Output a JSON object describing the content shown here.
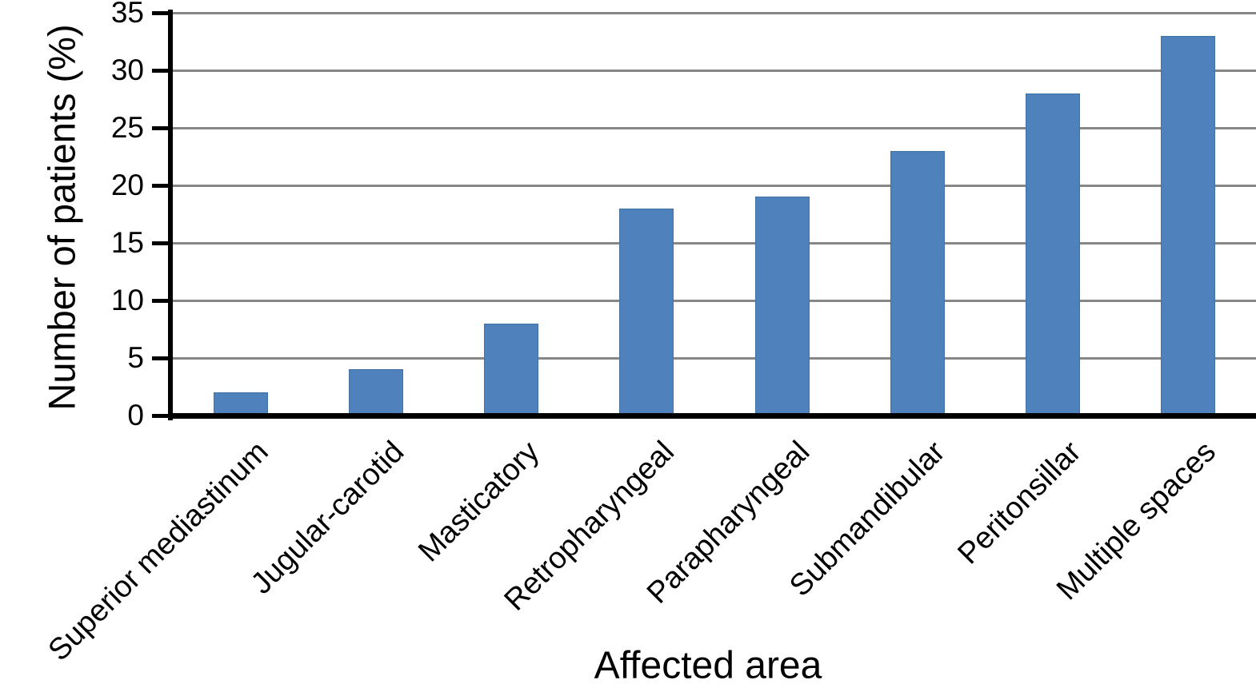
{
  "chart_data": {
    "type": "bar",
    "title": "",
    "categories": [
      "Superior mediastinum",
      "Jugular-carotid",
      "Masticatory",
      "Retropharyngeal",
      "Parapharyngeal",
      "Submandibular",
      "Peritonsillar",
      "Multiple spaces"
    ],
    "values": [
      2,
      4,
      8,
      18,
      19,
      23,
      28,
      33
    ],
    "xlabel": "Affected area",
    "ylabel": "Number of patients (%)",
    "ylim": [
      0,
      35
    ],
    "yticks": [
      0,
      5,
      10,
      15,
      20,
      25,
      30,
      35
    ],
    "grid": true,
    "legend": false,
    "bar_color": "#4f81bd",
    "bar_border_color": "#4272a4",
    "gridline_color": "#878787",
    "axis_color": "#000000",
    "text_color": "#000000",
    "background": "#ffffff"
  }
}
